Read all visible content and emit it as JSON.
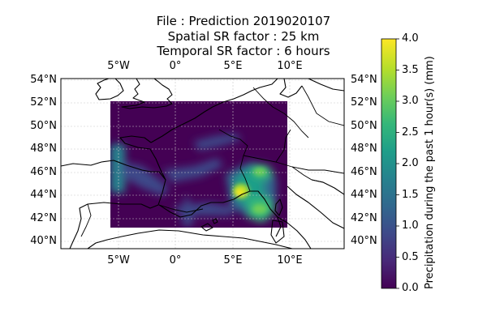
{
  "title": {
    "line1": "File : Prediction 2019020107",
    "line2": "Spatial SR factor : 25 km",
    "line3": "Temporal SR factor : 6 hours"
  },
  "map": {
    "lon_ticks": [
      "5°W",
      "0°",
      "5°E",
      "10°E"
    ],
    "lat_ticks": [
      "54°N",
      "52°N",
      "50°N",
      "48°N",
      "46°N",
      "44°N",
      "42°N",
      "40°N"
    ],
    "extent": {
      "lon": [
        -10,
        15
      ],
      "lat": [
        39.5,
        54
      ]
    },
    "data_extent": {
      "lon": [
        -5.8,
        9.7
      ],
      "lat": [
        41.3,
        52.2
      ]
    },
    "gridlines": true,
    "colormap": "viridis"
  },
  "colorbar": {
    "label": "Precipitation during the past 1 hour(s) (mm)",
    "ticks": [
      "0.0",
      "0.5",
      "1.0",
      "1.5",
      "2.0",
      "2.5",
      "3.0",
      "3.5",
      "4.0"
    ],
    "range": [
      0,
      4
    ],
    "colors": [
      "#440154",
      "#482878",
      "#3e4989",
      "#31688e",
      "#26828e",
      "#1f9e89",
      "#35b779",
      "#6ece58",
      "#b5de2b",
      "#fde725"
    ]
  }
}
